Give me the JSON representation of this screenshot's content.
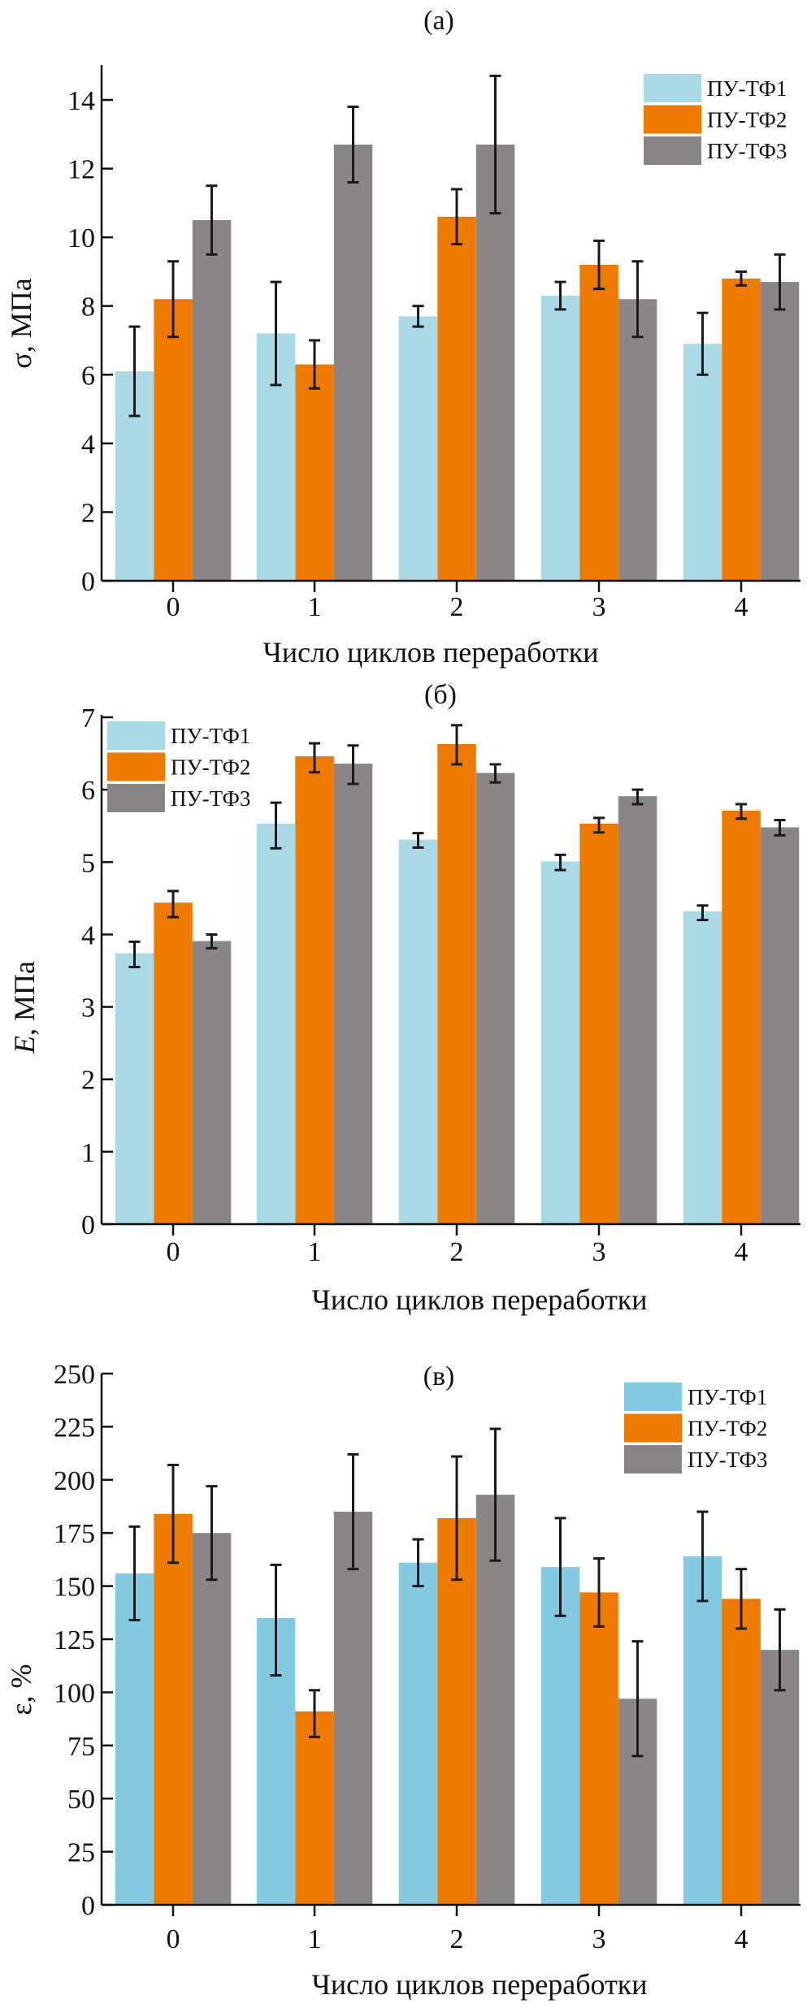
{
  "chart_data": [
    {
      "type": "bar",
      "panel": "(a)",
      "title": "(a)",
      "xlabel": "Число циклов переработки",
      "ylabel_symbol": "σ",
      "ylabel_unit": ", МПа",
      "ylim": [
        0,
        14.8
      ],
      "yticks": [
        0,
        2,
        4,
        6,
        8,
        10,
        12,
        14
      ],
      "categories": [
        "0",
        "1",
        "2",
        "3",
        "4"
      ],
      "legend_position": "top-right",
      "series": [
        {
          "name": "ПУ-ТФ1",
          "color": "#a9dae6",
          "values": [
            6.1,
            7.2,
            7.7,
            8.3,
            6.9
          ],
          "err_low": [
            4.8,
            5.7,
            7.4,
            7.9,
            6.0
          ],
          "err_high": [
            7.4,
            8.7,
            8.0,
            8.7,
            7.8
          ]
        },
        {
          "name": "ПУ-ТФ2",
          "color": "#ee7a00",
          "values": [
            8.2,
            6.3,
            10.6,
            9.2,
            8.8
          ],
          "err_low": [
            7.1,
            5.6,
            9.8,
            8.5,
            8.6
          ],
          "err_high": [
            9.3,
            7.0,
            11.4,
            9.9,
            9.0
          ]
        },
        {
          "name": "ПУ-ТФ3",
          "color": "#8a8685",
          "values": [
            10.5,
            12.7,
            12.7,
            8.2,
            8.7
          ],
          "err_low": [
            9.5,
            11.6,
            10.7,
            7.1,
            7.9
          ],
          "err_high": [
            11.5,
            13.8,
            14.7,
            9.3,
            9.5
          ]
        }
      ]
    },
    {
      "type": "bar",
      "panel": "(б)",
      "title": "(б)",
      "xlabel": "Число циклов переработки",
      "ylabel_symbol": "E",
      "ylabel_unit": ", МПа",
      "ylim": [
        0,
        7
      ],
      "yticks": [
        0,
        1,
        2,
        3,
        4,
        5,
        6,
        7
      ],
      "categories": [
        "0",
        "1",
        "2",
        "3",
        "4"
      ],
      "legend_position": "top-left",
      "series": [
        {
          "name": "ПУ-ТФ1",
          "color": "#a9dae6",
          "values": [
            3.74,
            5.53,
            5.31,
            5.01,
            4.32
          ],
          "err_low": [
            3.55,
            5.19,
            5.2,
            4.89,
            4.2
          ],
          "err_high": [
            3.9,
            5.82,
            5.4,
            5.1,
            4.4
          ]
        },
        {
          "name": "ПУ-ТФ2",
          "color": "#ee7a00",
          "values": [
            4.44,
            6.46,
            6.63,
            5.53,
            5.71
          ],
          "err_low": [
            4.24,
            6.24,
            6.35,
            5.41,
            5.6
          ],
          "err_high": [
            4.6,
            6.64,
            6.89,
            5.61,
            5.8
          ]
        },
        {
          "name": "ПУ-ТФ3",
          "color": "#8a8685",
          "values": [
            3.91,
            6.36,
            6.23,
            5.91,
            5.48
          ],
          "err_low": [
            3.81,
            6.08,
            6.1,
            5.8,
            5.37
          ],
          "err_high": [
            4.0,
            6.61,
            6.35,
            6.0,
            5.58
          ]
        }
      ]
    },
    {
      "type": "bar",
      "panel": "(в)",
      "title": "(в)",
      "xlabel": "Число циклов переработки",
      "ylabel_symbol": "ε",
      "ylabel_unit": ", %",
      "ylim": [
        0,
        250
      ],
      "yticks": [
        0,
        25,
        50,
        75,
        100,
        125,
        150,
        175,
        200,
        225,
        250
      ],
      "categories": [
        "0",
        "1",
        "2",
        "3",
        "4"
      ],
      "legend_position": "top-right",
      "series": [
        {
          "name": "ПУ-ТФ1",
          "color": "#84cbe1",
          "values": [
            156,
            135,
            161,
            159,
            164
          ],
          "err_low": [
            134,
            108,
            150,
            136,
            143
          ],
          "err_high": [
            178,
            160,
            172,
            182,
            185
          ]
        },
        {
          "name": "ПУ-ТФ2",
          "color": "#ee7a00",
          "values": [
            184,
            91,
            182,
            147,
            144
          ],
          "err_low": [
            161,
            79,
            153,
            131,
            130
          ],
          "err_high": [
            207,
            101,
            211,
            163,
            158
          ]
        },
        {
          "name": "ПУ-ТФ3",
          "color": "#8a8685",
          "values": [
            175,
            185,
            193,
            97,
            120
          ],
          "err_low": [
            153,
            158,
            162,
            70,
            101
          ],
          "err_high": [
            197,
            212,
            224,
            124,
            139
          ]
        }
      ]
    }
  ]
}
